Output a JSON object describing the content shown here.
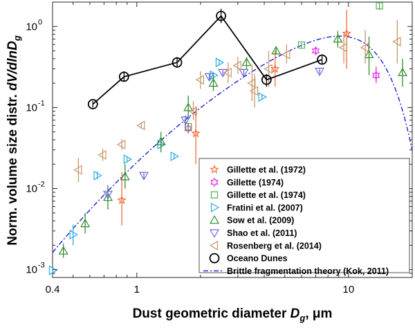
{
  "chart_data": {
    "type": "scatter",
    "xscale": "log",
    "yscale": "log",
    "xlim": [
      0.4,
      20
    ],
    "ylim": [
      0.0008,
      2
    ],
    "xticks": [
      {
        "v": 0.4,
        "label": "0.4"
      },
      {
        "v": 1,
        "label": "1"
      },
      {
        "v": 10,
        "label": "10"
      }
    ],
    "yticks": [
      {
        "v": 0.001,
        "label": "10",
        "exp": "-3"
      },
      {
        "v": 0.01,
        "label": "10",
        "exp": "-2"
      },
      {
        "v": 0.1,
        "label": "10",
        "exp": "-1"
      },
      {
        "v": 1,
        "label": "10",
        "exp": "0"
      }
    ],
    "xlabel": {
      "main": "Dust geometric diameter ",
      "sym": "D",
      "sub": "g",
      "unit": ", μm"
    },
    "ylabel": {
      "main": "Norm. volume size distr. ",
      "sym": "dV/dlnD",
      "sub": "g"
    },
    "grid": false,
    "legend_position": "bottom-right",
    "series": [
      {
        "name": "Gillette et al. (1972)",
        "marker": "star",
        "color": "#F26B3A",
        "points": [
          [
            0.85,
            0.0072,
            0.0035,
            0.016
          ],
          [
            1.9,
            0.048,
            0.02,
            0.1
          ],
          [
            4.5,
            0.3,
            0.18,
            0.5
          ],
          [
            9.8,
            0.82,
            0.3,
            1.6
          ]
        ]
      },
      {
        "name": "Gillette (1974)",
        "marker": "hexagram",
        "color": "#E52AE5",
        "points": [
          [
            1.75,
            0.055,
            0.048,
            0.063
          ],
          [
            7.0,
            0.5,
            0.45,
            0.56
          ],
          [
            13.5,
            0.25,
            0.2,
            0.32
          ]
        ]
      },
      {
        "name": "Gillette et al. (1974)",
        "marker": "square",
        "color": "#4CAF50",
        "points": [
          [
            1.75,
            0.058,
            0.05,
            0.065
          ],
          [
            6.0,
            0.59,
            0.55,
            0.63
          ],
          [
            14.0,
            1.8,
            1.6,
            2.0
          ]
        ]
      },
      {
        "name": "Fratini et al. (2007)",
        "marker": "triangle-right",
        "color": "#29ABE2",
        "points": [
          [
            0.4,
            0.00098,
            0.0009,
            0.00106
          ],
          [
            0.5,
            0.0027,
            0.002,
            0.0036
          ],
          [
            0.65,
            0.0145,
            0.013,
            0.0162
          ],
          [
            0.9,
            0.023,
            0.021,
            0.025
          ],
          [
            1.5,
            0.025,
            0.023,
            0.027
          ],
          [
            1.3,
            0.035,
            0.03,
            0.04
          ],
          [
            2.45,
            0.36,
            0.33,
            0.39
          ],
          [
            3.9,
            0.135,
            0.125,
            0.145
          ],
          [
            2.3,
            0.25,
            0.23,
            0.27
          ]
        ]
      },
      {
        "name": "Sow et al. (2009)",
        "marker": "triangle-up",
        "color": "#2E8B2E",
        "points": [
          [
            0.45,
            0.0017,
            0.0014,
            0.0021
          ],
          [
            0.57,
            0.0037,
            0.0028,
            0.005
          ],
          [
            0.73,
            0.0078,
            0.0055,
            0.011
          ],
          [
            0.88,
            0.014,
            0.01,
            0.02
          ],
          [
            1.3,
            0.038,
            0.028,
            0.05
          ],
          [
            1.75,
            0.1,
            0.07,
            0.14
          ],
          [
            2.3,
            0.2,
            0.16,
            0.25
          ],
          [
            3.3,
            0.36,
            0.3,
            0.42
          ],
          [
            4.55,
            0.5,
            0.46,
            0.55
          ],
          [
            8.9,
            0.7,
            0.55,
            0.88
          ],
          [
            12.5,
            0.45,
            0.25,
            0.75
          ],
          [
            18.0,
            0.27,
            0.18,
            0.4
          ]
        ]
      },
      {
        "name": "Shao et al. (2011)",
        "marker": "triangle-down",
        "color": "#6A6AD8",
        "points": [
          [
            0.73,
            0.0085,
            0.0075,
            0.0095
          ],
          [
            1.08,
            0.0145,
            0.013,
            0.016
          ],
          [
            1.7,
            0.07,
            0.06,
            0.08
          ],
          [
            2.2,
            0.24,
            0.22,
            0.26
          ],
          [
            2.55,
            0.27,
            0.25,
            0.29
          ],
          [
            3.2,
            0.27,
            0.24,
            0.3
          ],
          [
            7.3,
            0.28,
            0.26,
            0.3
          ]
        ]
      },
      {
        "name": "Rosenberg et al. (2014)",
        "marker": "triangle-left",
        "color": "#C8956A",
        "points": [
          [
            0.53,
            0.017,
            0.012,
            0.024
          ],
          [
            0.69,
            0.026,
            0.022,
            0.031
          ],
          [
            0.85,
            0.035,
            0.03,
            0.041
          ],
          [
            1.05,
            0.06,
            0.055,
            0.066
          ],
          [
            1.85,
            0.09,
            0.07,
            0.12
          ],
          [
            2.0,
            0.22,
            0.17,
            0.28
          ],
          [
            2.7,
            0.27,
            0.2,
            0.36
          ],
          [
            3.0,
            0.33,
            0.26,
            0.42
          ],
          [
            3.5,
            0.2,
            0.12,
            0.34
          ],
          [
            3.6,
            0.16,
            0.1,
            0.26
          ],
          [
            4.2,
            0.3,
            0.18,
            0.5
          ],
          [
            5.1,
            0.45,
            0.35,
            0.6
          ],
          [
            9.5,
            0.55,
            0.35,
            0.85
          ],
          [
            12.0,
            0.55,
            0.35,
            0.9
          ],
          [
            17.0,
            0.65,
            0.35,
            1.2
          ]
        ]
      },
      {
        "name": "Oceano Dunes",
        "marker": "circle",
        "color": "#000000",
        "line": true,
        "points": [
          [
            0.62,
            0.11,
            0.1,
            0.12
          ],
          [
            0.87,
            0.24,
            0.21,
            0.28
          ],
          [
            1.55,
            0.36,
            0.31,
            0.42
          ],
          [
            2.5,
            1.35,
            1.1,
            1.65
          ],
          [
            4.1,
            0.22,
            0.18,
            0.26
          ],
          [
            7.5,
            0.39,
            0.34,
            0.45
          ]
        ]
      }
    ],
    "theory": {
      "name": "Brittle fragmentation theory (Kok, 2011)",
      "color": "#1C1CD6",
      "Cv": 12.62,
      "ds": 3.4,
      "sigma": 3.0,
      "lam": 12.0
    }
  }
}
